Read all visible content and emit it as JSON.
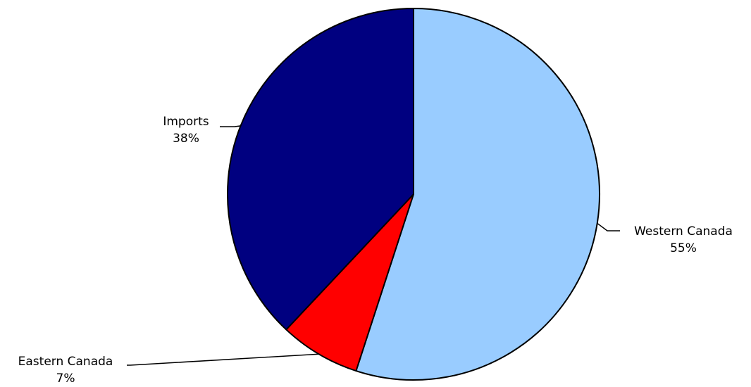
{
  "chart_data": {
    "type": "pie",
    "title": "",
    "start_angle_deg": 0,
    "direction": "clockwise",
    "slices": [
      {
        "label": "Western Canada",
        "percent_label": "55%",
        "value": 55,
        "color": "#99CCFF"
      },
      {
        "label": "Eastern Canada",
        "percent_label": "7%",
        "value": 7,
        "color": "#FF0000"
      },
      {
        "label": "Imports",
        "percent_label": "38%",
        "value": 38,
        "color": "#000080"
      }
    ]
  }
}
